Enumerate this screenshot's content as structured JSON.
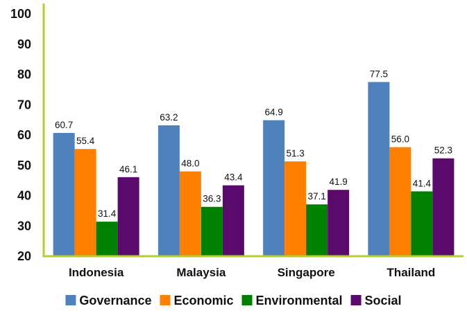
{
  "chart_data": {
    "type": "bar",
    "title": "",
    "xlabel": "",
    "ylabel": "",
    "ylim": [
      20,
      100
    ],
    "yticks": [
      20,
      30,
      40,
      50,
      60,
      70,
      80,
      90,
      100
    ],
    "categories": [
      "Indonesia",
      "Malaysia",
      "Singapore",
      "Thailand"
    ],
    "series": [
      {
        "name": "Governance",
        "color": "#4F81BD",
        "values": [
          60.7,
          63.2,
          64.9,
          77.5
        ],
        "labels": [
          "60.7",
          "63.2",
          "64.9",
          "77.5"
        ]
      },
      {
        "name": "Economic",
        "color": "#FF8000",
        "values": [
          55.4,
          48.0,
          51.3,
          56.0
        ],
        "labels": [
          "55.4",
          "48.0",
          "51.3",
          "56.0"
        ]
      },
      {
        "name": "Environmental",
        "color": "#008000",
        "values": [
          31.4,
          36.3,
          37.1,
          41.4
        ],
        "labels": [
          "31.4",
          "36.3",
          "37.1",
          "41.4"
        ]
      },
      {
        "name": "Social",
        "color": "#5A0A6B",
        "values": [
          46.1,
          43.4,
          41.9,
          52.3
        ],
        "labels": [
          "46.1",
          "43.4",
          "41.9",
          "52.3"
        ]
      }
    ],
    "legend_position": "bottom",
    "grid": false,
    "axis_color": "#B5CC33"
  }
}
